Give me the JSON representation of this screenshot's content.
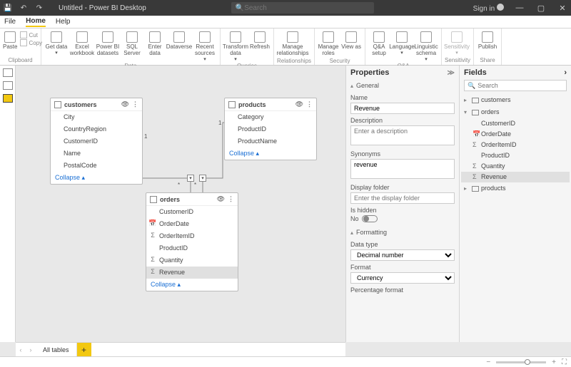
{
  "titlebar": {
    "title": "Untitled - Power BI Desktop",
    "search_placeholder": "Search",
    "signin": "Sign in"
  },
  "menu": {
    "file": "File",
    "home": "Home",
    "help": "Help"
  },
  "ribbon": {
    "clipboard": {
      "paste": "Paste",
      "cut": "Cut",
      "copy": "Copy",
      "label": "Clipboard"
    },
    "data": {
      "get": "Get data",
      "excel": "Excel workbook",
      "pbids": "Power BI datasets",
      "sql": "SQL Server",
      "enter": "Enter data",
      "dataverse": "Dataverse",
      "recent": "Recent sources",
      "label": "Data"
    },
    "queries": {
      "transform": "Transform data",
      "refresh": "Refresh",
      "label": "Queries"
    },
    "relationships": {
      "manage": "Manage relationships",
      "label": "Relationships"
    },
    "security": {
      "roles": "Manage roles",
      "viewas": "View as",
      "label": "Security"
    },
    "qa": {
      "setup": "Q&A setup",
      "lang": "Language",
      "schema": "Linguistic schema",
      "label": "Q&A"
    },
    "sensitivity": {
      "btn": "Sensitivity",
      "label": "Sensitivity"
    },
    "share": {
      "publish": "Publish",
      "label": "Share"
    }
  },
  "tables": {
    "customers": {
      "title": "customers",
      "fields": [
        "City",
        "CountryRegion",
        "CustomerID",
        "Name",
        "PostalCode"
      ],
      "collapse": "Collapse"
    },
    "products": {
      "title": "products",
      "fields": [
        "Category",
        "ProductID",
        "ProductName"
      ],
      "collapse": "Collapse"
    },
    "orders": {
      "title": "orders",
      "fields": [
        "CustomerID",
        "OrderDate",
        "OrderItemID",
        "ProductID",
        "Quantity",
        "Revenue"
      ],
      "icons": [
        "",
        "cal",
        "sum",
        "",
        "sum",
        "sum"
      ],
      "selected_index": 5,
      "collapse": "Collapse"
    }
  },
  "properties": {
    "panel_title": "Properties",
    "general": "General",
    "name_label": "Name",
    "name_value": "Revenue",
    "desc_label": "Description",
    "desc_placeholder": "Enter a description",
    "syn_label": "Synonyms",
    "syn_value": "revenue",
    "folder_label": "Display folder",
    "folder_placeholder": "Enter the display folder",
    "hidden_label": "Is hidden",
    "hidden_value": "No",
    "formatting": "Formatting",
    "datatype_label": "Data type",
    "datatype_value": "Decimal number",
    "format_label": "Format",
    "format_value": "Currency",
    "pct_label": "Percentage format"
  },
  "fieldspane": {
    "title": "Fields",
    "search_placeholder": "Search",
    "tables": [
      {
        "name": "customers",
        "expanded": false,
        "fields": []
      },
      {
        "name": "orders",
        "expanded": true,
        "fields": [
          {
            "name": "CustomerID",
            "icon": ""
          },
          {
            "name": "OrderDate",
            "icon": "cal"
          },
          {
            "name": "OrderItemID",
            "icon": "sum"
          },
          {
            "name": "ProductID",
            "icon": ""
          },
          {
            "name": "Quantity",
            "icon": "sum"
          },
          {
            "name": "Revenue",
            "icon": "sum",
            "selected": true
          }
        ]
      },
      {
        "name": "products",
        "expanded": false,
        "fields": []
      }
    ]
  },
  "footer": {
    "tab": "All tables"
  },
  "colors": {
    "accent": "#f2c811",
    "link": "#1a6fd4"
  }
}
